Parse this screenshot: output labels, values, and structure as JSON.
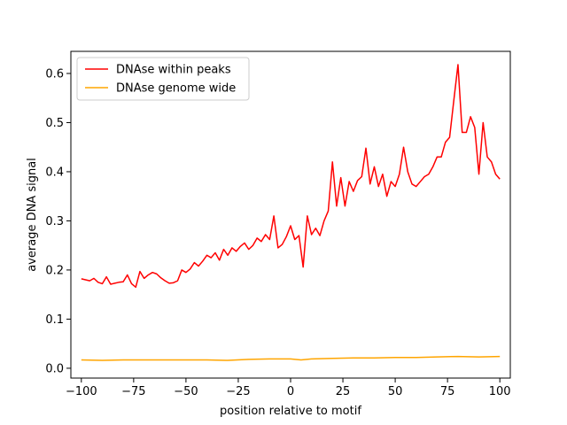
{
  "chart_data": {
    "type": "line",
    "title": "",
    "xlabel": "position relative to motif",
    "ylabel": "average DNA signal",
    "xlim": [
      -105,
      105
    ],
    "ylim": [
      -0.02,
      0.645
    ],
    "xticks": [
      -100,
      -75,
      -50,
      -25,
      0,
      25,
      50,
      75,
      100
    ],
    "yticks": [
      0.0,
      0.1,
      0.2,
      0.3,
      0.4,
      0.5,
      0.6
    ],
    "grid": false,
    "legend_position": "top-left",
    "series": [
      {
        "name": "DNAse within peaks",
        "color": "#ff0000",
        "x": [
          -100,
          -98,
          -96,
          -94,
          -92,
          -90,
          -88,
          -86,
          -84,
          -82,
          -80,
          -78,
          -76,
          -74,
          -72,
          -70,
          -68,
          -66,
          -64,
          -62,
          -60,
          -58,
          -56,
          -54,
          -52,
          -50,
          -48,
          -46,
          -44,
          -42,
          -40,
          -38,
          -36,
          -34,
          -32,
          -30,
          -28,
          -26,
          -24,
          -22,
          -20,
          -18,
          -16,
          -14,
          -12,
          -10,
          -8,
          -6,
          -4,
          -2,
          0,
          2,
          4,
          6,
          8,
          10,
          12,
          14,
          16,
          18,
          20,
          22,
          24,
          26,
          28,
          30,
          32,
          34,
          36,
          38,
          40,
          42,
          44,
          46,
          48,
          50,
          52,
          54,
          56,
          58,
          60,
          62,
          64,
          66,
          68,
          70,
          72,
          74,
          76,
          78,
          80,
          82,
          84,
          86,
          88,
          90,
          92,
          94,
          96,
          98,
          100
        ],
        "values": [
          0.182,
          0.18,
          0.178,
          0.183,
          0.175,
          0.172,
          0.186,
          0.171,
          0.173,
          0.175,
          0.176,
          0.19,
          0.172,
          0.165,
          0.197,
          0.183,
          0.19,
          0.195,
          0.192,
          0.184,
          0.178,
          0.173,
          0.174,
          0.178,
          0.2,
          0.195,
          0.202,
          0.215,
          0.208,
          0.218,
          0.23,
          0.225,
          0.235,
          0.22,
          0.242,
          0.23,
          0.245,
          0.238,
          0.248,
          0.255,
          0.242,
          0.25,
          0.265,
          0.258,
          0.272,
          0.262,
          0.31,
          0.245,
          0.252,
          0.268,
          0.29,
          0.262,
          0.27,
          0.206,
          0.31,
          0.272,
          0.285,
          0.27,
          0.3,
          0.32,
          0.42,
          0.33,
          0.388,
          0.33,
          0.38,
          0.36,
          0.382,
          0.39,
          0.448,
          0.375,
          0.41,
          0.37,
          0.395,
          0.35,
          0.38,
          0.37,
          0.395,
          0.45,
          0.4,
          0.375,
          0.37,
          0.38,
          0.39,
          0.395,
          0.41,
          0.43,
          0.43,
          0.46,
          0.47,
          0.545,
          0.618,
          0.48,
          0.48,
          0.512,
          0.49,
          0.395,
          0.5,
          0.43,
          0.42,
          0.395,
          0.385
        ]
      },
      {
        "name": "DNAse genome wide",
        "color": "#ffa500",
        "x": [
          -100,
          -90,
          -80,
          -70,
          -60,
          -50,
          -40,
          -30,
          -20,
          -10,
          0,
          5,
          10,
          20,
          30,
          40,
          50,
          60,
          70,
          80,
          90,
          100
        ],
        "values": [
          0.017,
          0.016,
          0.017,
          0.017,
          0.017,
          0.017,
          0.017,
          0.016,
          0.018,
          0.019,
          0.019,
          0.017,
          0.019,
          0.02,
          0.021,
          0.021,
          0.022,
          0.022,
          0.023,
          0.024,
          0.023,
          0.024
        ]
      }
    ]
  }
}
